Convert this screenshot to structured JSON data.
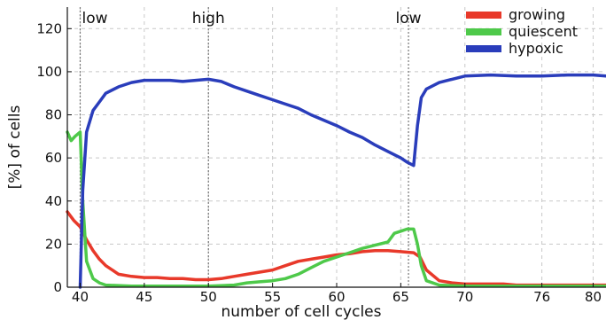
{
  "chart_data": {
    "type": "line",
    "xlabel": "number of cell cycles",
    "ylabel": "[%] of cells",
    "xlim": [
      39,
      81
    ],
    "ylim": [
      0,
      130
    ],
    "x_ticks": [
      40,
      45,
      50,
      55,
      60,
      65,
      70,
      76,
      80
    ],
    "y_ticks": [
      0,
      20,
      40,
      60,
      80,
      100,
      120
    ],
    "grid": true,
    "legend_position": "top-right",
    "phase_markers": [
      {
        "x": 40,
        "label": "low"
      },
      {
        "x": 50,
        "label": "high"
      },
      {
        "x": 65.6,
        "label": "low"
      }
    ],
    "series": [
      {
        "name": "growing",
        "color": "#e8392a",
        "x": [
          39,
          39.5,
          40,
          40.5,
          41,
          41.5,
          42,
          43,
          44,
          45,
          46,
          47,
          48,
          49,
          50,
          51,
          52,
          53,
          54,
          55,
          56,
          57,
          58,
          59,
          60,
          61,
          62,
          63,
          64,
          65,
          66,
          66.5,
          67,
          68,
          69,
          70,
          71,
          72,
          73,
          74,
          75,
          76,
          77,
          78,
          79,
          80,
          81
        ],
        "values": [
          35,
          31,
          28,
          22,
          17,
          13,
          10,
          6,
          5,
          4.5,
          4.5,
          4,
          4,
          3.5,
          3.5,
          4,
          5,
          6,
          7,
          8,
          10,
          12,
          13,
          14,
          15,
          15.5,
          16.5,
          17,
          17,
          16.5,
          16,
          14,
          8,
          3,
          2,
          1.5,
          1.5,
          1.5,
          1.5,
          1,
          1,
          1,
          1,
          1,
          1,
          1,
          1
        ]
      },
      {
        "name": "quiescent",
        "color": "#4ec94a",
        "x": [
          39,
          39.3,
          39.6,
          40,
          40.2,
          40.5,
          41,
          41.5,
          42,
          44,
          46,
          48,
          50,
          52,
          53,
          54,
          55,
          56,
          57,
          58,
          59,
          60,
          61,
          62,
          63,
          64,
          64.5,
          65,
          65.5,
          66,
          66.3,
          66.6,
          67,
          68,
          70,
          72,
          74,
          76,
          78,
          80,
          81
        ],
        "values": [
          72,
          68,
          70,
          72,
          40,
          12,
          4,
          2,
          1,
          0.5,
          0.5,
          0.5,
          0.5,
          1,
          2,
          2.5,
          3,
          4,
          6,
          9,
          12,
          14,
          16,
          18,
          19.5,
          21,
          25,
          26,
          27,
          27,
          20,
          10,
          3,
          1,
          0.5,
          0.5,
          0.5,
          0.5,
          0.5,
          0.5,
          0.5
        ]
      },
      {
        "name": "hypoxic",
        "color": "#2a3dbb",
        "x": [
          40,
          40.2,
          40.5,
          41,
          41.5,
          42,
          43,
          44,
          45,
          46,
          47,
          48,
          49,
          50,
          51,
          52,
          53,
          54,
          55,
          56,
          57,
          58,
          59,
          60,
          61,
          62,
          63,
          64,
          65,
          65.5,
          66,
          66.3,
          66.6,
          67,
          68,
          69,
          70,
          72,
          74,
          76,
          78,
          80,
          81
        ],
        "values": [
          0,
          45,
          72,
          82,
          86,
          90,
          93,
          95,
          96,
          96,
          96,
          95.5,
          96,
          96.5,
          95.5,
          93,
          91,
          89,
          87,
          85,
          83,
          80,
          77.5,
          75,
          72,
          69.5,
          66,
          63,
          60,
          58,
          56.5,
          75,
          88,
          92,
          95,
          96.5,
          98,
          98.5,
          98,
          98,
          98.5,
          98.5,
          98
        ]
      }
    ]
  }
}
